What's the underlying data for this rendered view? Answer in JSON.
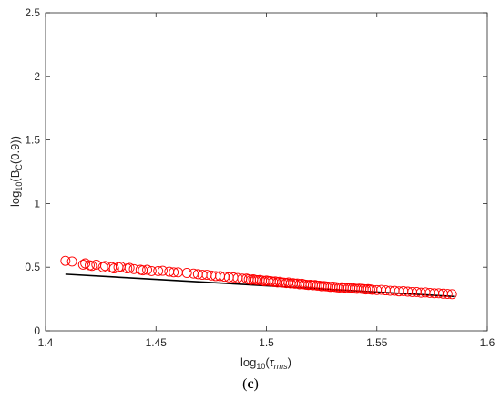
{
  "figure": {
    "panel_label": "c"
  },
  "chart_data": {
    "type": "scatter",
    "xlabel": "log10(τrms)",
    "ylabel": "log10(BC(0.9))",
    "xlim": [
      1.4,
      1.6
    ],
    "ylim": [
      0,
      2.5
    ],
    "xticks": [
      "1.4",
      "1.45",
      "1.5",
      "1.55",
      "1.6"
    ],
    "yticks": [
      "0",
      "0.5",
      "1",
      "1.5",
      "2",
      "2.5"
    ],
    "grid": false,
    "legend": "none",
    "marker_color": "#ff0000",
    "line_color": "#000000",
    "series": [
      {
        "type": "scatter",
        "marker": "open-circle",
        "points": [
          [
            1.409,
            0.55
          ],
          [
            1.412,
            0.545
          ],
          [
            1.417,
            0.52
          ],
          [
            1.418,
            0.53
          ],
          [
            1.42,
            0.515
          ],
          [
            1.421,
            0.51
          ],
          [
            1.423,
            0.52
          ],
          [
            1.426,
            0.5
          ],
          [
            1.427,
            0.51
          ],
          [
            1.43,
            0.5
          ],
          [
            1.431,
            0.49
          ],
          [
            1.433,
            0.5
          ],
          [
            1.434,
            0.505
          ],
          [
            1.437,
            0.49
          ],
          [
            1.438,
            0.495
          ],
          [
            1.44,
            0.485
          ],
          [
            1.443,
            0.48
          ],
          [
            1.444,
            0.475
          ],
          [
            1.446,
            0.48
          ],
          [
            1.448,
            0.47
          ],
          [
            1.451,
            0.47
          ],
          [
            1.453,
            0.472
          ],
          [
            1.456,
            0.465
          ],
          [
            1.458,
            0.46
          ],
          [
            1.46,
            0.46
          ],
          [
            1.464,
            0.455
          ],
          [
            1.467,
            0.45
          ],
          [
            1.469,
            0.445
          ],
          [
            1.471,
            0.44
          ],
          [
            1.473,
            0.44
          ],
          [
            1.475,
            0.435
          ],
          [
            1.477,
            0.43
          ],
          [
            1.479,
            0.43
          ],
          [
            1.481,
            0.425
          ],
          [
            1.483,
            0.42
          ],
          [
            1.485,
            0.42
          ],
          [
            1.487,
            0.415
          ],
          [
            1.489,
            0.41
          ],
          [
            1.491,
            0.41
          ],
          [
            1.492,
            0.405
          ],
          [
            1.493,
            0.4
          ],
          [
            1.494,
            0.405
          ],
          [
            1.495,
            0.4
          ],
          [
            1.496,
            0.398
          ],
          [
            1.497,
            0.4
          ],
          [
            1.498,
            0.395
          ],
          [
            1.499,
            0.39
          ],
          [
            1.5,
            0.395
          ],
          [
            1.501,
            0.392
          ],
          [
            1.502,
            0.39
          ],
          [
            1.503,
            0.385
          ],
          [
            1.504,
            0.388
          ],
          [
            1.505,
            0.38
          ],
          [
            1.506,
            0.385
          ],
          [
            1.507,
            0.38
          ],
          [
            1.508,
            0.378
          ],
          [
            1.509,
            0.375
          ],
          [
            1.51,
            0.38
          ],
          [
            1.511,
            0.372
          ],
          [
            1.512,
            0.375
          ],
          [
            1.513,
            0.37
          ],
          [
            1.514,
            0.372
          ],
          [
            1.515,
            0.365
          ],
          [
            1.516,
            0.37
          ],
          [
            1.517,
            0.365
          ],
          [
            1.518,
            0.362
          ],
          [
            1.519,
            0.36
          ],
          [
            1.52,
            0.362
          ],
          [
            1.521,
            0.358
          ],
          [
            1.522,
            0.36
          ],
          [
            1.523,
            0.355
          ],
          [
            1.524,
            0.355
          ],
          [
            1.525,
            0.35
          ],
          [
            1.526,
            0.352
          ],
          [
            1.527,
            0.35
          ],
          [
            1.528,
            0.348
          ],
          [
            1.529,
            0.345
          ],
          [
            1.53,
            0.348
          ],
          [
            1.531,
            0.345
          ],
          [
            1.532,
            0.342
          ],
          [
            1.533,
            0.34
          ],
          [
            1.534,
            0.342
          ],
          [
            1.535,
            0.34
          ],
          [
            1.536,
            0.338
          ],
          [
            1.537,
            0.335
          ],
          [
            1.538,
            0.338
          ],
          [
            1.539,
            0.335
          ],
          [
            1.54,
            0.332
          ],
          [
            1.541,
            0.33
          ],
          [
            1.542,
            0.332
          ],
          [
            1.543,
            0.33
          ],
          [
            1.544,
            0.328
          ],
          [
            1.545,
            0.325
          ],
          [
            1.546,
            0.328
          ],
          [
            1.547,
            0.325
          ],
          [
            1.548,
            0.322
          ],
          [
            1.55,
            0.32
          ],
          [
            1.552,
            0.322
          ],
          [
            1.554,
            0.318
          ],
          [
            1.556,
            0.315
          ],
          [
            1.558,
            0.315
          ],
          [
            1.56,
            0.31
          ],
          [
            1.562,
            0.312
          ],
          [
            1.564,
            0.308
          ],
          [
            1.566,
            0.305
          ],
          [
            1.568,
            0.305
          ],
          [
            1.57,
            0.3
          ],
          [
            1.572,
            0.302
          ],
          [
            1.574,
            0.298
          ],
          [
            1.576,
            0.295
          ],
          [
            1.578,
            0.295
          ],
          [
            1.58,
            0.292
          ],
          [
            1.582,
            0.29
          ],
          [
            1.584,
            0.288
          ]
        ]
      },
      {
        "type": "line",
        "points": [
          [
            1.409,
            0.445
          ],
          [
            1.585,
            0.27
          ]
        ]
      }
    ]
  }
}
